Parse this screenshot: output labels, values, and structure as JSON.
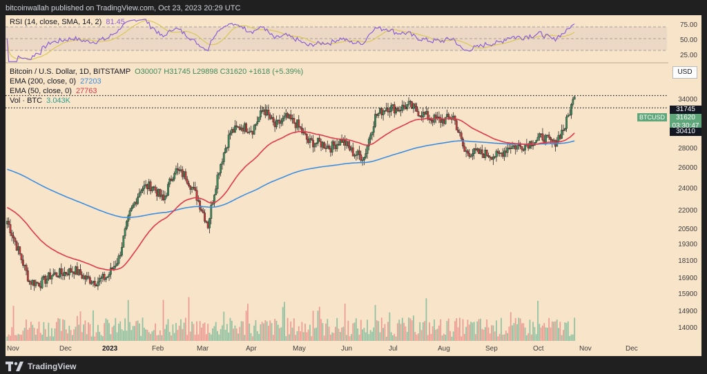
{
  "header": {
    "text": "bitcoinwallah published on TradingView.com, Oct 23, 2023 20:29 UTC"
  },
  "rsi": {
    "label": "RSI (14, close, SMA, 14, 2)",
    "value": "81.45",
    "levels": [
      "75.00",
      "50.00",
      "25.00"
    ]
  },
  "legend": {
    "symbol": "Bitcoin / U.S. Dollar, 1D, BITSTAMP",
    "ohlc": "O30007 H31745 L29898 C31620 +1618 (+5.39%)",
    "ema200_label": "EMA (200, close, 0)",
    "ema200_value": "27203",
    "ema50_label": "EMA (50, close, 0)",
    "ema50_value": "27763",
    "vol_label": "Vol · BTC",
    "vol_value": "3.043K"
  },
  "currency": "USD",
  "price_axis": [
    "34000",
    "28000",
    "26000",
    "24000",
    "22000",
    "20500",
    "19300",
    "18100",
    "16900",
    "15900",
    "14900",
    "14000"
  ],
  "price_tags": {
    "high": "31745",
    "ticker": "BTCUSD",
    "last": "31620",
    "countdown": "03:30:47",
    "level": "30410"
  },
  "time_axis": [
    {
      "label": "Nov",
      "bold": false
    },
    {
      "label": "Dec",
      "bold": false
    },
    {
      "label": "2023",
      "bold": true
    },
    {
      "label": "Feb",
      "bold": false
    },
    {
      "label": "Mar",
      "bold": false
    },
    {
      "label": "Apr",
      "bold": false
    },
    {
      "label": "May",
      "bold": false
    },
    {
      "label": "Jun",
      "bold": false
    },
    {
      "label": "Jul",
      "bold": false
    },
    {
      "label": "Aug",
      "bold": false
    },
    {
      "label": "Sep",
      "bold": false
    },
    {
      "label": "Oct",
      "bold": false
    },
    {
      "label": "Nov",
      "bold": false
    },
    {
      "label": "Dec",
      "bold": false
    }
  ],
  "footer": {
    "brand": "TradingView"
  },
  "colors": {
    "background": "#f8e4c9",
    "up": "#3e8a5c",
    "down": "#c23b3b",
    "ema200": "#3b8de0",
    "ema50": "#e0384a",
    "rsi": "#8b5fd6",
    "rsi_ma": "#d8c85a",
    "vol_up": "#79b99a",
    "vol_down": "#e98b87"
  },
  "chart_data": {
    "type": "candlestick",
    "title": "Bitcoin / U.S. Dollar, 1D, BITSTAMP",
    "ylabel": "USD",
    "scale": "log",
    "ylim": [
      13500,
      35500
    ],
    "x_range": [
      "2022-10-31",
      "2023-12-20"
    ],
    "weekly_closes": [
      {
        "x": "2022-11-01",
        "y": 20500
      },
      {
        "x": "2022-11-08",
        "y": 18500
      },
      {
        "x": "2022-11-15",
        "y": 16600
      },
      {
        "x": "2022-11-22",
        "y": 16500
      },
      {
        "x": "2022-11-29",
        "y": 17000
      },
      {
        "x": "2022-12-06",
        "y": 17100
      },
      {
        "x": "2022-12-13",
        "y": 17300
      },
      {
        "x": "2022-12-20",
        "y": 16800
      },
      {
        "x": "2022-12-27",
        "y": 16600
      },
      {
        "x": "2023-01-03",
        "y": 16900
      },
      {
        "x": "2023-01-10",
        "y": 18000
      },
      {
        "x": "2023-01-17",
        "y": 21000
      },
      {
        "x": "2023-01-24",
        "y": 23000
      },
      {
        "x": "2023-01-31",
        "y": 23200
      },
      {
        "x": "2023-02-07",
        "y": 22000
      },
      {
        "x": "2023-02-14",
        "y": 24500
      },
      {
        "x": "2023-02-21",
        "y": 24000
      },
      {
        "x": "2023-02-28",
        "y": 22300
      },
      {
        "x": "2023-03-07",
        "y": 20200
      },
      {
        "x": "2023-03-14",
        "y": 24600
      },
      {
        "x": "2023-03-21",
        "y": 27900
      },
      {
        "x": "2023-03-28",
        "y": 28500
      },
      {
        "x": "2023-04-04",
        "y": 28200
      },
      {
        "x": "2023-04-11",
        "y": 30300
      },
      {
        "x": "2023-04-18",
        "y": 28500
      },
      {
        "x": "2023-04-25",
        "y": 29400
      },
      {
        "x": "2023-05-02",
        "y": 28700
      },
      {
        "x": "2023-05-09",
        "y": 27000
      },
      {
        "x": "2023-05-16",
        "y": 26900
      },
      {
        "x": "2023-05-23",
        "y": 26500
      },
      {
        "x": "2023-05-30",
        "y": 27200
      },
      {
        "x": "2023-06-06",
        "y": 26000
      },
      {
        "x": "2023-06-13",
        "y": 25600
      },
      {
        "x": "2023-06-20",
        "y": 29500
      },
      {
        "x": "2023-06-27",
        "y": 30500
      },
      {
        "x": "2023-07-04",
        "y": 30300
      },
      {
        "x": "2023-07-11",
        "y": 30700
      },
      {
        "x": "2023-07-18",
        "y": 29900
      },
      {
        "x": "2023-07-25",
        "y": 29300
      },
      {
        "x": "2023-08-01",
        "y": 29100
      },
      {
        "x": "2023-08-08",
        "y": 29500
      },
      {
        "x": "2023-08-15",
        "y": 26100
      },
      {
        "x": "2023-08-22",
        "y": 26000
      },
      {
        "x": "2023-08-29",
        "y": 25900
      },
      {
        "x": "2023-09-05",
        "y": 25700
      },
      {
        "x": "2023-09-12",
        "y": 26600
      },
      {
        "x": "2023-09-19",
        "y": 26600
      },
      {
        "x": "2023-09-26",
        "y": 27000
      },
      {
        "x": "2023-10-03",
        "y": 27500
      },
      {
        "x": "2023-10-10",
        "y": 26800
      },
      {
        "x": "2023-10-17",
        "y": 28500
      },
      {
        "x": "2023-10-23",
        "y": 31620
      }
    ],
    "series": [
      {
        "name": "EMA (200, close, 0)",
        "last": 27203
      },
      {
        "name": "EMA (50, close, 0)",
        "last": 27763
      }
    ],
    "horizontal_levels": [
      31745,
      30410
    ],
    "rsi": {
      "last": 81.45,
      "levels": [
        25,
        50,
        75
      ]
    }
  }
}
